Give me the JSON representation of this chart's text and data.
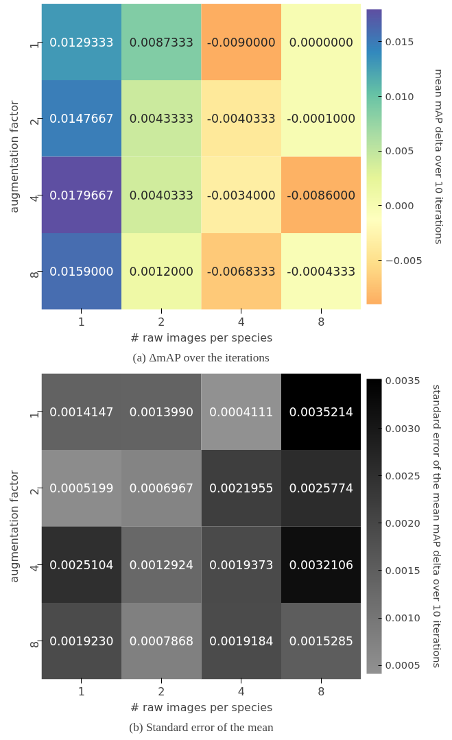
{
  "chart_data": [
    {
      "type": "heatmap",
      "categories": [
        "1",
        "2",
        "4",
        "8"
      ],
      "y_categories": [
        "1",
        "2",
        "4",
        "8"
      ],
      "cells": [
        [
          0.0129333,
          0.0087333,
          -0.009,
          0.0
        ],
        [
          0.0147667,
          0.0043333,
          -0.0040333,
          -0.0001
        ],
        [
          0.0179667,
          0.0040333,
          -0.0034,
          -0.0086
        ],
        [
          0.0159,
          0.0012,
          -0.0068333,
          -0.0004333
        ]
      ],
      "cell_labels": [
        [
          "0.0129333",
          "0.0087333",
          "-0.0090000",
          "0.0000000"
        ],
        [
          "0.0147667",
          "0.0043333",
          "-0.0040333",
          "-0.0001000"
        ],
        [
          "0.0179667",
          "0.0040333",
          "-0.0034000",
          "-0.0086000"
        ],
        [
          "0.0159000",
          "0.0012000",
          "-0.0068333",
          "-0.0004333"
        ]
      ],
      "xlabel": "# raw images per species",
      "ylabel": "augmentation factor",
      "clabel": "mean mAP delta over 10 iterations",
      "clim": [
        -0.009,
        0.0179667
      ],
      "cticks": [
        {
          "value": -0.005,
          "label": "−0.005"
        },
        {
          "value": 0,
          "label": "0.000"
        },
        {
          "value": 0.005,
          "label": "0.005"
        },
        {
          "value": 0.01,
          "label": "0.010"
        },
        {
          "value": 0.015,
          "label": "0.015"
        }
      ],
      "annotations": [
        "(a) ΔmAP over the iterations"
      ]
    },
    {
      "type": "heatmap",
      "categories": [
        "1",
        "2",
        "4",
        "8"
      ],
      "y_categories": [
        "1",
        "2",
        "4",
        "8"
      ],
      "cells": [
        [
          0.0014147,
          0.001399,
          0.0004111,
          0.0035214
        ],
        [
          0.0005199,
          0.0006967,
          0.0021955,
          0.0025774
        ],
        [
          0.0025104,
          0.0012924,
          0.0019373,
          0.0032106
        ],
        [
          0.001923,
          0.0007868,
          0.0019184,
          0.0015285
        ]
      ],
      "cell_labels": [
        [
          "0.0014147",
          "0.0013990",
          "0.0004111",
          "0.0035214"
        ],
        [
          "0.0005199",
          "0.0006967",
          "0.0021955",
          "0.0025774"
        ],
        [
          "0.0025104",
          "0.0012924",
          "0.0019373",
          "0.0032106"
        ],
        [
          "0.0019230",
          "0.0007868",
          "0.0019184",
          "0.0015285"
        ]
      ],
      "xlabel": "# raw images per species",
      "ylabel": "augmentation factor",
      "clabel": "standard error of the mean mAP delta over 10 iterations",
      "clim": [
        0.0004111,
        0.0035214
      ],
      "cticks": [
        {
          "value": 0.0005,
          "label": "0.0005"
        },
        {
          "value": 0.001,
          "label": "0.0010"
        },
        {
          "value": 0.0015,
          "label": "0.0015"
        },
        {
          "value": 0.002,
          "label": "0.0020"
        },
        {
          "value": 0.0025,
          "label": "0.0025"
        },
        {
          "value": 0.003,
          "label": "0.0030"
        },
        {
          "value": 0.0035,
          "label": "0.0035"
        }
      ],
      "annotations": [
        "(b) Standard error of the mean"
      ]
    }
  ]
}
